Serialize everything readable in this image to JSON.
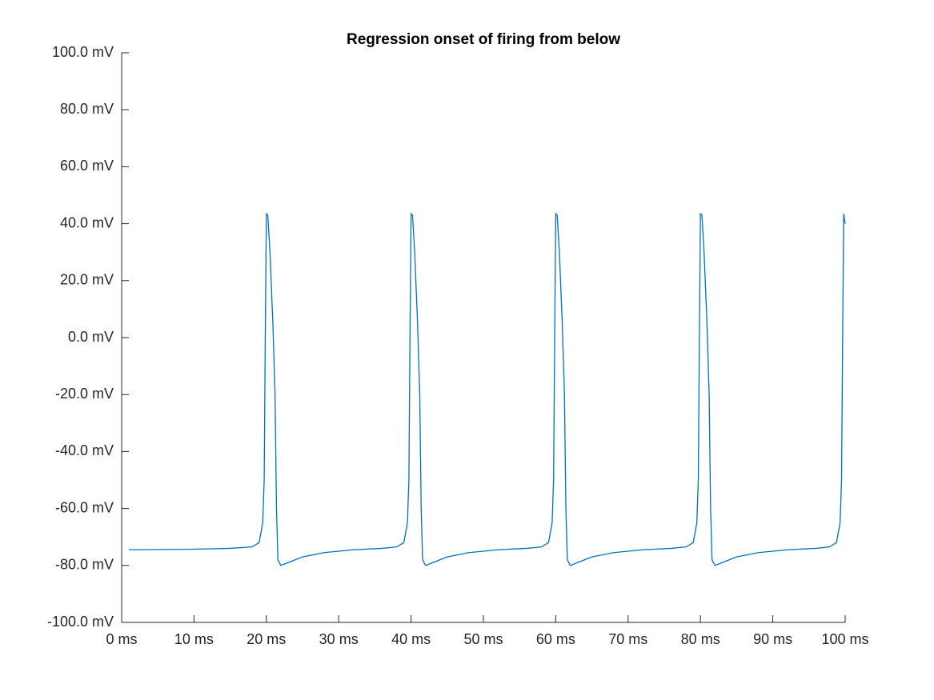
{
  "chart_data": {
    "type": "line",
    "title": "Regression onset of firing from below",
    "x": [
      1,
      10,
      15,
      18,
      19,
      19.5,
      19.7,
      19.85,
      20,
      20.2,
      20.5,
      20.9,
      21.2,
      21.4,
      21.6,
      22,
      23,
      25,
      28,
      32,
      36,
      38,
      39,
      39.5,
      39.7,
      39.85,
      40,
      40.2,
      40.5,
      40.9,
      41.2,
      41.4,
      41.6,
      42,
      43,
      45,
      48,
      52,
      56,
      58,
      59,
      59.5,
      59.7,
      59.85,
      60,
      60.2,
      60.5,
      60.9,
      61.2,
      61.4,
      61.6,
      62,
      63,
      65,
      68,
      72,
      76,
      78,
      79,
      79.5,
      79.7,
      79.85,
      80,
      80.2,
      80.5,
      80.9,
      81.2,
      81.4,
      81.6,
      82,
      83,
      85,
      88,
      92,
      96,
      97.8,
      98.8,
      99.3,
      99.5,
      99.65,
      99.8,
      100
    ],
    "series": [
      {
        "color": "#0072bd",
        "values": [
          -74.5,
          -74.3,
          -74.0,
          -73.5,
          -72,
          -65,
          -50,
          0,
          43.5,
          43,
          30,
          5,
          -20,
          -60,
          -78,
          -80,
          -79,
          -77,
          -75.5,
          -74.5,
          -74,
          -73.5,
          -72,
          -65,
          -50,
          0,
          43.5,
          43,
          30,
          5,
          -20,
          -60,
          -78,
          -80,
          -79,
          -77,
          -75.5,
          -74.5,
          -74,
          -73.5,
          -72,
          -65,
          -50,
          0,
          43.5,
          43,
          30,
          5,
          -20,
          -60,
          -78,
          -80,
          -79,
          -77,
          -75.5,
          -74.5,
          -74,
          -73.5,
          -72,
          -65,
          -50,
          0,
          43.5,
          43,
          30,
          5,
          -20,
          -60,
          -78,
          -80,
          -79,
          -77,
          -75.5,
          -74.5,
          -74,
          -73.5,
          -72,
          -65,
          -50,
          0,
          43.5,
          40
        ]
      }
    ],
    "xlim": [
      0,
      100
    ],
    "xticks": [
      {
        "value": 0,
        "label": "0 ms"
      },
      {
        "value": 10,
        "label": "10 ms"
      },
      {
        "value": 20,
        "label": "20 ms"
      },
      {
        "value": 30,
        "label": "30 ms"
      },
      {
        "value": 40,
        "label": "40 ms"
      },
      {
        "value": 50,
        "label": "50 ms"
      },
      {
        "value": 60,
        "label": "60 ms"
      },
      {
        "value": 70,
        "label": "70 ms"
      },
      {
        "value": 80,
        "label": "80 ms"
      },
      {
        "value": 90,
        "label": "90 ms"
      },
      {
        "value": 100,
        "label": "100 ms"
      }
    ],
    "ylim": [
      -100,
      100
    ],
    "yticks": [
      {
        "value": -100,
        "label": "-100.0 mV"
      },
      {
        "value": -80,
        "label": "-80.0 mV"
      },
      {
        "value": -60,
        "label": "-60.0 mV"
      },
      {
        "value": -40,
        "label": "-40.0 mV"
      },
      {
        "value": -20,
        "label": "-20.0 mV"
      },
      {
        "value": 0,
        "label": "0.0 mV"
      },
      {
        "value": 20,
        "label": "20.0 mV"
      },
      {
        "value": 40,
        "label": "40.0 mV"
      },
      {
        "value": 60,
        "label": "60.0 mV"
      },
      {
        "value": 80,
        "label": "80.0 mV"
      },
      {
        "value": 100,
        "label": "100.0 mV"
      }
    ]
  }
}
